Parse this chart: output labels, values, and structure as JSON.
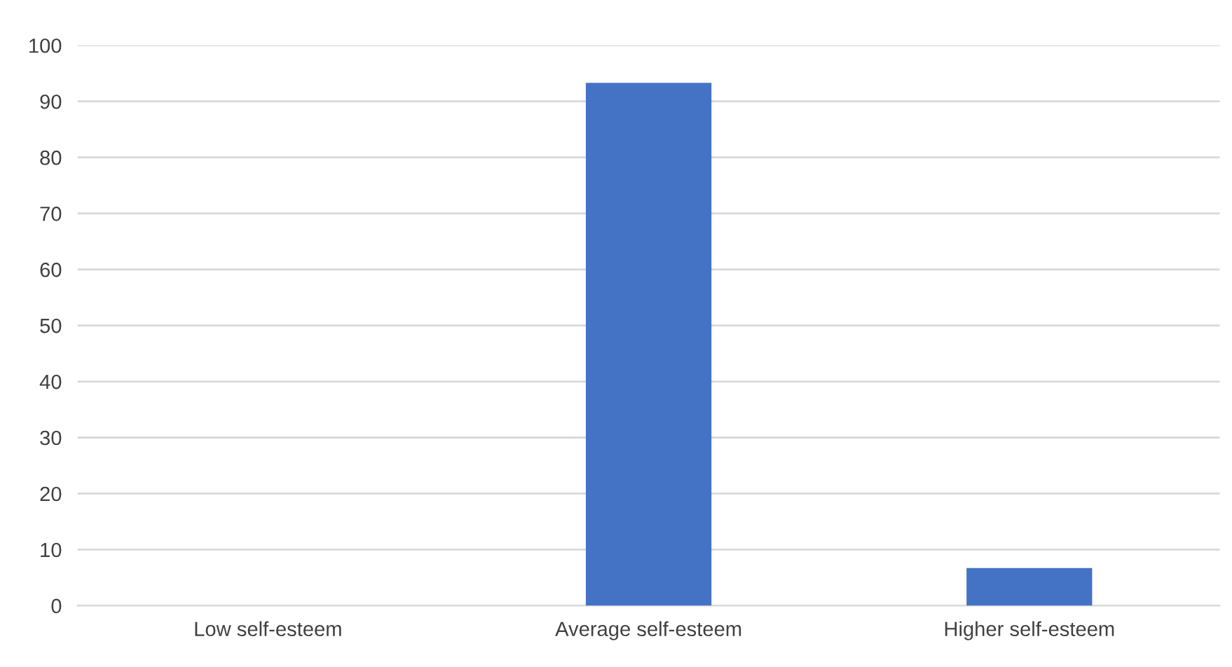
{
  "chart_data": {
    "type": "bar",
    "categories": [
      "Low self-esteem",
      "Average self-esteem",
      "Higher self-esteem"
    ],
    "values": [
      0,
      93.3,
      6.7
    ],
    "color": "#4472c4",
    "ylim": [
      0,
      100
    ],
    "yticks": [
      0,
      10,
      20,
      30,
      40,
      50,
      60,
      70,
      80,
      90,
      100
    ],
    "grid": "y"
  }
}
